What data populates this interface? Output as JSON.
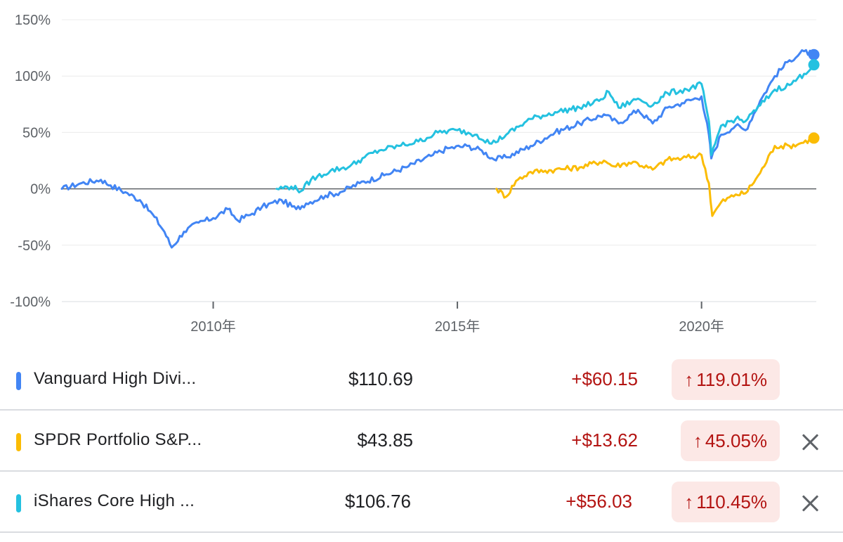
{
  "chart_data": {
    "type": "line",
    "x_unit": "year",
    "xlim": [
      2006.9,
      2022.35
    ],
    "ylim": [
      -100,
      150
    ],
    "y_ticks": [
      "150%",
      "100%",
      "50%",
      "0%",
      "-50%",
      "-100%"
    ],
    "y_tick_values": [
      150,
      100,
      50,
      0,
      -50,
      -100
    ],
    "x_ticks": [
      "2010年",
      "2015年",
      "2020年"
    ],
    "x_tick_values": [
      2010.0,
      2015.0,
      2020.0
    ],
    "baseline": 0,
    "grid": "horizontal",
    "series": [
      {
        "color": "#4285f4",
        "points": [
          [
            2006.9,
            0
          ],
          [
            2007.3,
            5
          ],
          [
            2007.7,
            8
          ],
          [
            2007.9,
            3
          ],
          [
            2008.2,
            -3
          ],
          [
            2008.5,
            -10
          ],
          [
            2008.8,
            -25
          ],
          [
            2009.0,
            -38
          ],
          [
            2009.15,
            -52
          ],
          [
            2009.4,
            -38
          ],
          [
            2009.7,
            -30
          ],
          [
            2010.0,
            -26
          ],
          [
            2010.3,
            -18
          ],
          [
            2010.5,
            -28
          ],
          [
            2010.8,
            -22
          ],
          [
            2011.0,
            -16
          ],
          [
            2011.4,
            -10
          ],
          [
            2011.7,
            -18
          ],
          [
            2011.9,
            -13
          ],
          [
            2012.3,
            -6
          ],
          [
            2012.6,
            -3
          ],
          [
            2013.0,
            5
          ],
          [
            2013.5,
            12
          ],
          [
            2014.0,
            20
          ],
          [
            2014.5,
            30
          ],
          [
            2014.8,
            36
          ],
          [
            2015.2,
            38
          ],
          [
            2015.5,
            34
          ],
          [
            2015.75,
            26
          ],
          [
            2016.0,
            28
          ],
          [
            2016.5,
            38
          ],
          [
            2017.0,
            50
          ],
          [
            2017.5,
            58
          ],
          [
            2018.0,
            66
          ],
          [
            2018.3,
            58
          ],
          [
            2018.7,
            70
          ],
          [
            2019.0,
            58
          ],
          [
            2019.3,
            72
          ],
          [
            2019.6,
            76
          ],
          [
            2020.0,
            82
          ],
          [
            2020.15,
            48
          ],
          [
            2020.2,
            27
          ],
          [
            2020.4,
            48
          ],
          [
            2020.7,
            56
          ],
          [
            2020.9,
            52
          ],
          [
            2021.2,
            78
          ],
          [
            2021.5,
            100
          ],
          [
            2021.8,
            114
          ],
          [
            2022.1,
            122
          ],
          [
            2022.3,
            119
          ]
        ]
      },
      {
        "color": "#fbbc04",
        "points": [
          [
            2015.8,
            0
          ],
          [
            2016.0,
            -7
          ],
          [
            2016.2,
            7
          ],
          [
            2016.5,
            15
          ],
          [
            2016.8,
            16
          ],
          [
            2017.0,
            17
          ],
          [
            2017.5,
            19
          ],
          [
            2018.0,
            25
          ],
          [
            2018.2,
            20
          ],
          [
            2018.6,
            24
          ],
          [
            2019.0,
            17
          ],
          [
            2019.3,
            26
          ],
          [
            2019.6,
            27
          ],
          [
            2020.0,
            30
          ],
          [
            2020.15,
            5
          ],
          [
            2020.22,
            -24
          ],
          [
            2020.4,
            -12
          ],
          [
            2020.7,
            -5
          ],
          [
            2020.9,
            -4
          ],
          [
            2021.2,
            14
          ],
          [
            2021.5,
            38
          ],
          [
            2021.8,
            38
          ],
          [
            2022.0,
            40
          ],
          [
            2022.3,
            45
          ]
        ]
      },
      {
        "color": "#24c1e0",
        "points": [
          [
            2011.3,
            0
          ],
          [
            2011.6,
            2
          ],
          [
            2011.8,
            -2
          ],
          [
            2012.0,
            8
          ],
          [
            2012.4,
            16
          ],
          [
            2012.8,
            20
          ],
          [
            2013.1,
            28
          ],
          [
            2013.4,
            34
          ],
          [
            2013.8,
            38
          ],
          [
            2014.2,
            42
          ],
          [
            2014.6,
            50
          ],
          [
            2015.0,
            52
          ],
          [
            2015.4,
            48
          ],
          [
            2015.7,
            40
          ],
          [
            2016.0,
            48
          ],
          [
            2016.5,
            62
          ],
          [
            2017.0,
            68
          ],
          [
            2017.5,
            72
          ],
          [
            2017.9,
            78
          ],
          [
            2018.1,
            86
          ],
          [
            2018.3,
            72
          ],
          [
            2018.7,
            80
          ],
          [
            2019.0,
            74
          ],
          [
            2019.3,
            85
          ],
          [
            2019.7,
            88
          ],
          [
            2020.0,
            93
          ],
          [
            2020.15,
            60
          ],
          [
            2020.2,
            30
          ],
          [
            2020.4,
            56
          ],
          [
            2020.7,
            62
          ],
          [
            2020.9,
            60
          ],
          [
            2021.2,
            74
          ],
          [
            2021.5,
            88
          ],
          [
            2021.8,
            92
          ],
          [
            2022.1,
            102
          ],
          [
            2022.3,
            110
          ]
        ]
      }
    ]
  },
  "holdings": [
    {
      "name": "Vanguard High Divi...",
      "price": "$110.69",
      "change": "+$60.15",
      "arrow": "↑",
      "pct": "119.01%",
      "color": "#4285f4",
      "removable": false
    },
    {
      "name": "SPDR Portfolio S&P...",
      "price": "$43.85",
      "change": "+$13.62",
      "arrow": "↑",
      "pct": "45.05%",
      "color": "#fbbc04",
      "removable": true
    },
    {
      "name": "iShares Core High ...",
      "price": "$106.76",
      "change": "+$56.03",
      "arrow": "↑",
      "pct": "110.45%",
      "color": "#24c1e0",
      "removable": true
    }
  ]
}
